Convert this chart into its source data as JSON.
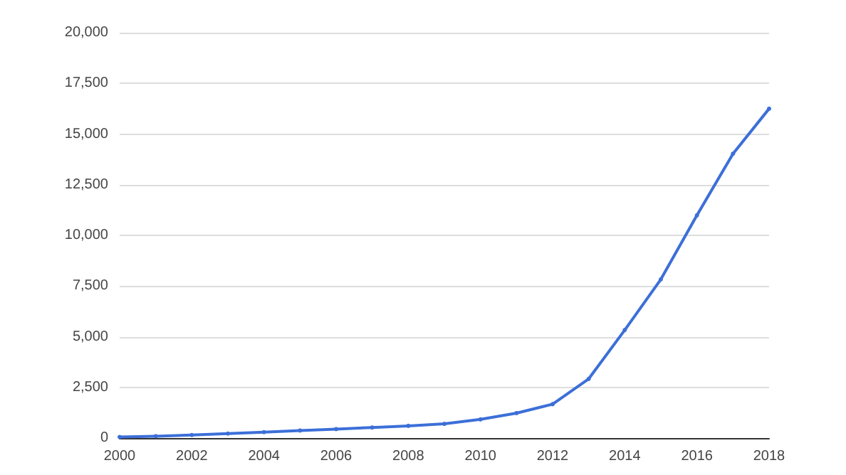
{
  "chart_data": {
    "type": "line",
    "x": [
      2000,
      2001,
      2002,
      2003,
      2004,
      2005,
      2006,
      2007,
      2008,
      2009,
      2010,
      2011,
      2012,
      2013,
      2014,
      2015,
      2016,
      2017,
      2018
    ],
    "series": [
      {
        "color": "#3c6fd8",
        "values": [
          50,
          90,
          150,
          220,
          290,
          370,
          440,
          520,
          600,
          700,
          920,
          1230,
          1670,
          2920,
          5330,
          7830,
          10990,
          14030,
          16250
        ]
      }
    ],
    "xlim": [
      2000,
      2018
    ],
    "xticks": [
      2000,
      2002,
      2004,
      2006,
      2008,
      2010,
      2012,
      2014,
      2016,
      2018
    ],
    "ylim": [
      0,
      20000
    ],
    "yticks": [
      {
        "value": 0,
        "label": "0"
      },
      {
        "value": 2500,
        "label": "2,500"
      },
      {
        "value": 5000,
        "label": "5,000"
      },
      {
        "value": 7500,
        "label": "7,500"
      },
      {
        "value": 10000,
        "label": "10,000"
      },
      {
        "value": 12500,
        "label": "12,500"
      },
      {
        "value": 15000,
        "label": "15,000"
      },
      {
        "value": 17500,
        "label": "17,500"
      },
      {
        "value": 20000,
        "label": "20,000"
      }
    ],
    "grid": "y",
    "marker": "circle"
  }
}
